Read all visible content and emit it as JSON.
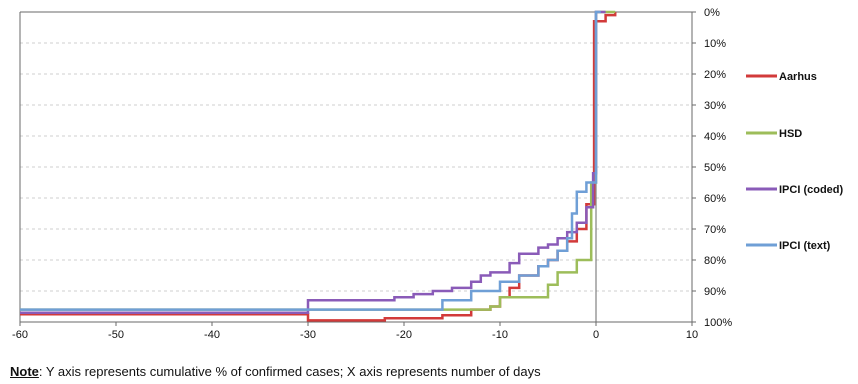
{
  "chart_data": {
    "type": "line",
    "step": true,
    "xlim": [
      -60,
      10
    ],
    "ylim": [
      0,
      100
    ],
    "y_inverted": true,
    "x_ticks": [
      -60,
      -50,
      -40,
      -30,
      -20,
      -10,
      0,
      10
    ],
    "y_ticks": [
      0,
      10,
      20,
      30,
      40,
      50,
      60,
      70,
      80,
      90,
      100
    ],
    "x_tick_labels": [
      "-60",
      "-50",
      "-40",
      "-30",
      "-20",
      "-10",
      "0",
      "10"
    ],
    "y_tick_labels": [
      "0%",
      "10%",
      "20%",
      "30%",
      "40%",
      "50%",
      "60%",
      "70%",
      "80%",
      "90%",
      "100%"
    ],
    "grid": {
      "horizontal": true,
      "vertical": false
    },
    "legend_position": "right",
    "series": [
      {
        "name": "Aarhus",
        "color": "#d23a3a",
        "points": [
          [
            -60,
            97.5
          ],
          [
            -30,
            97.5
          ],
          [
            -30,
            99.5
          ],
          [
            -22,
            99.5
          ],
          [
            -22,
            98.8
          ],
          [
            -16,
            98.8
          ],
          [
            -16,
            97.8
          ],
          [
            -13,
            97.8
          ],
          [
            -13,
            96
          ],
          [
            -11,
            96
          ],
          [
            -11,
            95
          ],
          [
            -10,
            95
          ],
          [
            -10,
            92
          ],
          [
            -9,
            92
          ],
          [
            -9,
            89
          ],
          [
            -8,
            89
          ],
          [
            -8,
            85
          ],
          [
            -6,
            85
          ],
          [
            -6,
            82
          ],
          [
            -5,
            82
          ],
          [
            -5,
            80
          ],
          [
            -4,
            80
          ],
          [
            -4,
            77
          ],
          [
            -3,
            77
          ],
          [
            -3,
            74
          ],
          [
            -2,
            74
          ],
          [
            -2,
            70
          ],
          [
            -1,
            70
          ],
          [
            -1,
            62
          ],
          [
            -0.2,
            62
          ],
          [
            -0.2,
            3
          ],
          [
            1,
            3
          ],
          [
            1,
            1
          ],
          [
            2,
            1
          ],
          [
            2,
            0
          ]
        ]
      },
      {
        "name": "HSD",
        "color": "#9dbd5a",
        "points": [
          [
            -60,
            96
          ],
          [
            -11,
            96
          ],
          [
            -11,
            95
          ],
          [
            -10,
            95
          ],
          [
            -10,
            92
          ],
          [
            -5,
            92
          ],
          [
            -5,
            88
          ],
          [
            -4,
            88
          ],
          [
            -4,
            84
          ],
          [
            -2,
            84
          ],
          [
            -2,
            80
          ],
          [
            -0.5,
            80
          ],
          [
            -0.5,
            55
          ],
          [
            0,
            55
          ],
          [
            0,
            0
          ],
          [
            2,
            0
          ]
        ]
      },
      {
        "name": "IPCI (coded)",
        "color": "#8a5bb8",
        "points": [
          [
            -60,
            97
          ],
          [
            -30,
            97
          ],
          [
            -30,
            93
          ],
          [
            -21,
            93
          ],
          [
            -21,
            92
          ],
          [
            -19,
            92
          ],
          [
            -19,
            91
          ],
          [
            -17,
            91
          ],
          [
            -17,
            90
          ],
          [
            -15,
            90
          ],
          [
            -15,
            89
          ],
          [
            -13,
            89
          ],
          [
            -13,
            87
          ],
          [
            -12,
            87
          ],
          [
            -12,
            85
          ],
          [
            -11,
            85
          ],
          [
            -11,
            84
          ],
          [
            -9,
            84
          ],
          [
            -9,
            81
          ],
          [
            -8,
            81
          ],
          [
            -8,
            78
          ],
          [
            -6,
            78
          ],
          [
            -6,
            76
          ],
          [
            -5,
            76
          ],
          [
            -5,
            75
          ],
          [
            -4,
            75
          ],
          [
            -4,
            73
          ],
          [
            -3,
            73
          ],
          [
            -3,
            71
          ],
          [
            -2,
            71
          ],
          [
            -2,
            68
          ],
          [
            -1,
            68
          ],
          [
            -1,
            63
          ],
          [
            -0.3,
            63
          ],
          [
            -0.3,
            52
          ],
          [
            0,
            52
          ],
          [
            0,
            0
          ],
          [
            1,
            0
          ]
        ]
      },
      {
        "name": "IPCI (text)",
        "color": "#6f9fd6",
        "points": [
          [
            -60,
            96
          ],
          [
            -16,
            96
          ],
          [
            -16,
            93
          ],
          [
            -13,
            93
          ],
          [
            -13,
            90
          ],
          [
            -10,
            90
          ],
          [
            -10,
            87
          ],
          [
            -8,
            87
          ],
          [
            -8,
            85
          ],
          [
            -6,
            85
          ],
          [
            -6,
            82
          ],
          [
            -5,
            82
          ],
          [
            -5,
            80
          ],
          [
            -4,
            80
          ],
          [
            -4,
            77
          ],
          [
            -3,
            77
          ],
          [
            -3,
            73
          ],
          [
            -2.5,
            73
          ],
          [
            -2.5,
            65
          ],
          [
            -2,
            65
          ],
          [
            -2,
            58
          ],
          [
            -1,
            58
          ],
          [
            -1,
            55
          ],
          [
            0,
            55
          ],
          [
            0,
            0
          ],
          [
            0.5,
            0
          ]
        ]
      }
    ],
    "note_label": "Note",
    "note_text": ": Y axis represents cumulative % of confirmed cases; X axis represents number of days"
  }
}
